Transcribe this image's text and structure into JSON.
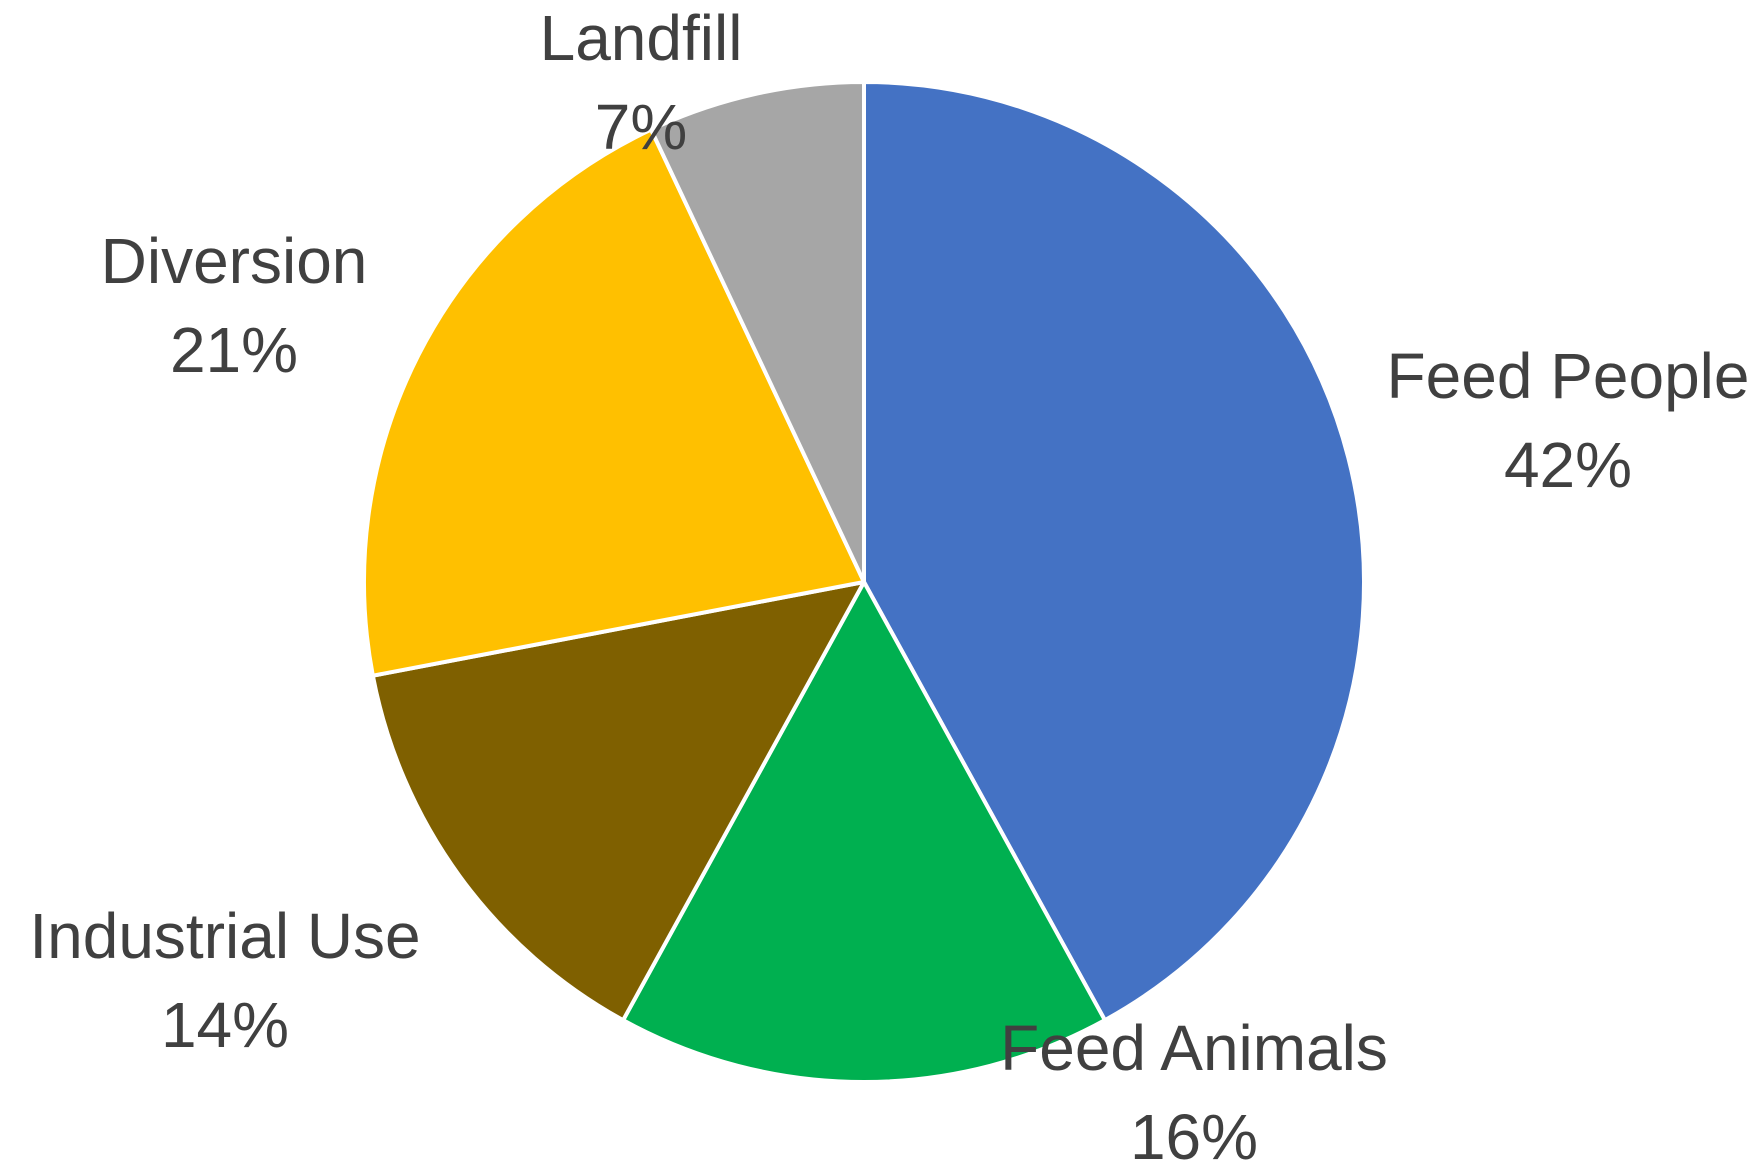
{
  "chart_data": {
    "type": "pie",
    "title": "",
    "slices": [
      {
        "label": "Feed People",
        "value_label": "42%",
        "value": 42,
        "color": "#4472C4"
      },
      {
        "label": "Feed Animals",
        "value_label": "16%",
        "value": 16,
        "color": "#00B050"
      },
      {
        "label": "Industrial Use",
        "value_label": "14%",
        "value": 14,
        "color": "#7F6000"
      },
      {
        "label": "Diversion",
        "value_label": "21%",
        "value": 21,
        "color": "#FFC000"
      },
      {
        "label": "Landfill",
        "value_label": "7%",
        "value": 7,
        "color": "#A6A6A6"
      }
    ],
    "start_angle": "12 o'clock",
    "direction": "clockwise",
    "legend": "none",
    "data_labels": "category name and percentage"
  }
}
